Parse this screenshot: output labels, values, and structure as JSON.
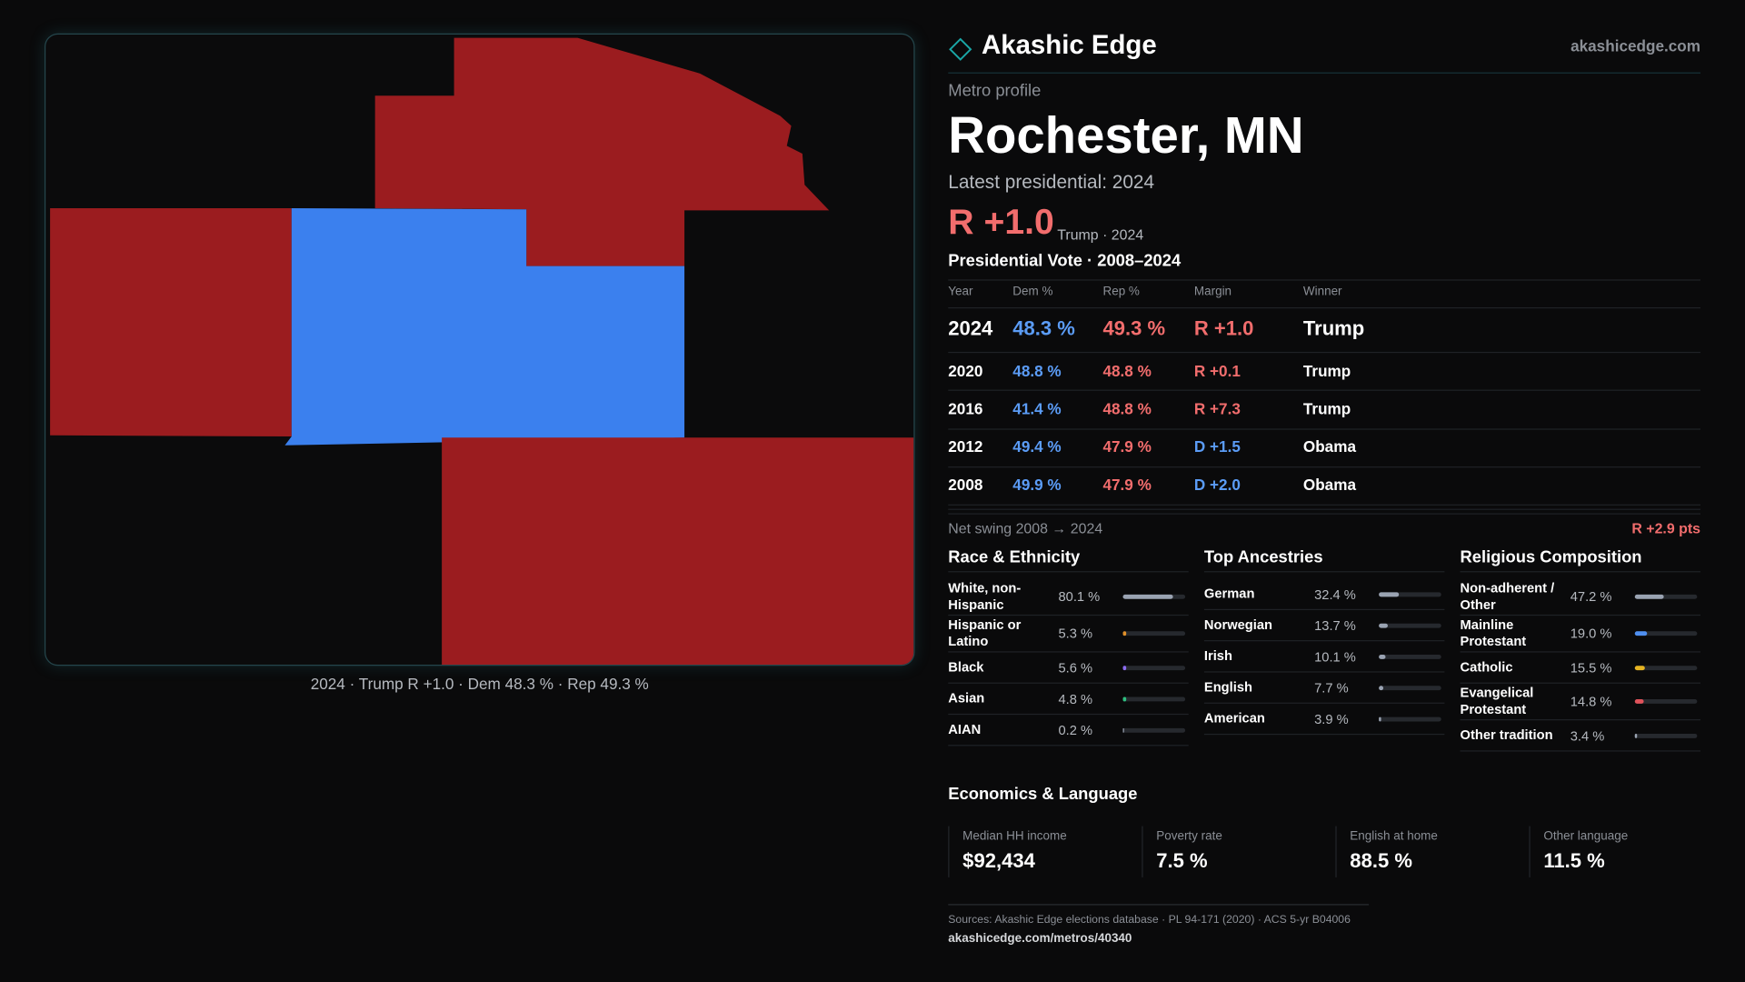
{
  "header": {
    "brand": "Akashic Edge",
    "site": "akashicedge.com"
  },
  "map": {
    "caption": "2024 · Trump R +1.0 · Dem 48.3 % · Rep 49.3 %"
  },
  "profile": {
    "kicker": "Metro profile",
    "title": "Rochester, MN",
    "latest": "Latest presidential: 2024",
    "margin": "R +1.0",
    "margin_note": "Trump · 2024",
    "margin_color": "#f26d6d"
  },
  "vote_table": {
    "title": "Presidential Vote · 2008–2024",
    "columns": [
      "Year",
      "Dem %",
      "Rep %",
      "Margin",
      "Winner"
    ],
    "dem_color": "#5b9cf6",
    "rep_color": "#f26d6d",
    "rows": [
      {
        "year": 2024,
        "dem": "48.3 %",
        "rep": "49.3 %",
        "margin": "R +1.0",
        "margin_color": "#f26d6d",
        "winner": "Trump"
      },
      {
        "year": 2020,
        "dem": "48.8 %",
        "rep": "48.8 %",
        "margin": "R +0.1",
        "margin_color": "#f26d6d",
        "winner": "Trump"
      },
      {
        "year": 2016,
        "dem": "41.4 %",
        "rep": "48.8 %",
        "margin": "R +7.3",
        "margin_color": "#f26d6d",
        "winner": "Trump"
      },
      {
        "year": 2012,
        "dem": "49.4 %",
        "rep": "47.9 %",
        "margin": "D +1.5",
        "margin_color": "#5b9cf6",
        "winner": "Obama"
      },
      {
        "year": 2008,
        "dem": "49.9 %",
        "rep": "47.9 %",
        "margin": "D +2.0",
        "margin_color": "#5b9cf6",
        "winner": "Obama"
      }
    ]
  },
  "swing": {
    "label": "Net swing 2008 → 2024",
    "value": "R +2.9 pts",
    "color": "#f26d6d"
  },
  "composition": [
    {
      "title": "Race & Ethnicity",
      "xlim": [
        0,
        100
      ],
      "rows": [
        {
          "label": "White, non-Hispanic",
          "value": 80.1,
          "value_label": "80.1 %",
          "color": "#9aa3b2"
        },
        {
          "label": "Hispanic or Latino",
          "value": 5.3,
          "value_label": "5.3 %",
          "color": "#e0902a"
        },
        {
          "label": "Black",
          "value": 5.6,
          "value_label": "5.6 %",
          "color": "#8b6cf0"
        },
        {
          "label": "Asian",
          "value": 4.8,
          "value_label": "4.8 %",
          "color": "#2fbf80"
        },
        {
          "label": "AIAN",
          "value": 0.2,
          "value_label": "0.2 %",
          "color": "#9aa3b2"
        }
      ]
    },
    {
      "title": "Top Ancestries",
      "xlim": [
        0,
        100
      ],
      "rows": [
        {
          "label": "German",
          "value": 32.4,
          "value_label": "32.4 %",
          "color": "#9aa3b2"
        },
        {
          "label": "Norwegian",
          "value": 13.7,
          "value_label": "13.7 %",
          "color": "#9aa3b2"
        },
        {
          "label": "Irish",
          "value": 10.1,
          "value_label": "10.1 %",
          "color": "#9aa3b2"
        },
        {
          "label": "English",
          "value": 7.7,
          "value_label": "7.7 %",
          "color": "#9aa3b2"
        },
        {
          "label": "American",
          "value": 3.9,
          "value_label": "3.9 %",
          "color": "#9aa3b2"
        }
      ]
    },
    {
      "title": "Religious Composition",
      "xlim": [
        0,
        100
      ],
      "rows": [
        {
          "label": "Non-adherent / Other",
          "value": 47.2,
          "value_label": "47.2 %",
          "color": "#9aa3b2"
        },
        {
          "label": "Mainline Protestant",
          "value": 19.0,
          "value_label": "19.0 %",
          "color": "#4f8ff0"
        },
        {
          "label": "Catholic",
          "value": 15.5,
          "value_label": "15.5 %",
          "color": "#e6b422"
        },
        {
          "label": "Evangelical Protestant",
          "value": 14.8,
          "value_label": "14.8 %",
          "color": "#e0525a"
        },
        {
          "label": "Other tradition",
          "value": 3.4,
          "value_label": "3.4 %",
          "color": "#9aa3b2"
        }
      ]
    }
  ],
  "economics": {
    "title": "Economics & Language",
    "cards": [
      {
        "label": "Median HH income",
        "value": "$92,434"
      },
      {
        "label": "Poverty rate",
        "value": "7.5 %"
      },
      {
        "label": "English at home",
        "value": "88.5 %"
      },
      {
        "label": "Other language",
        "value": "11.5 %"
      }
    ]
  },
  "footer": {
    "sources": "Sources: Akashic Edge elections database · PL 94-171 (2020) · ACS 5-yr B04006",
    "url": "akashicedge.com/metros/40340"
  }
}
